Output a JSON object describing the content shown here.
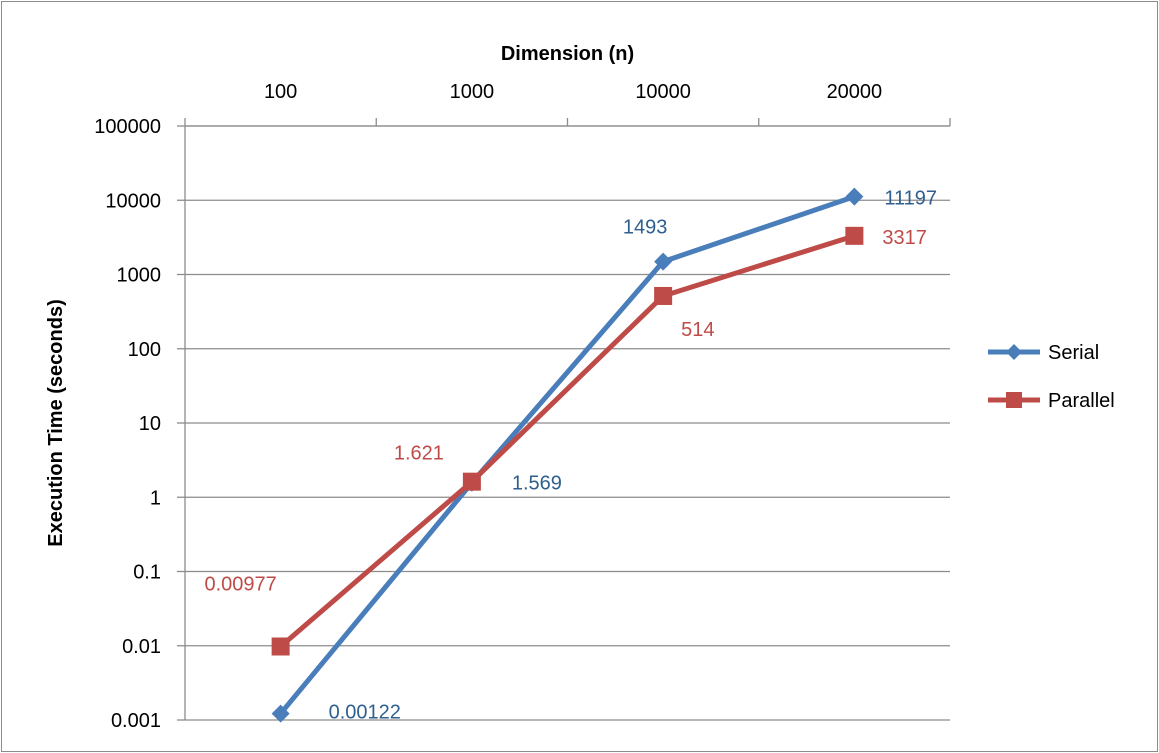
{
  "chart_data": {
    "type": "line",
    "xlabel": "Dimension (n)",
    "ylabel": "Execution Time (seconds)",
    "categories": [
      "100",
      "1000",
      "10000",
      "20000"
    ],
    "y_scale": "log",
    "ylim": [
      0.001,
      100000
    ],
    "y_ticks": [
      "100000",
      "10000",
      "1000",
      "100",
      "10",
      "1",
      "0.1",
      "0.01",
      "0.001"
    ],
    "grid": true,
    "legend_position": "right",
    "series": [
      {
        "name": "Serial",
        "values": [
          0.00122,
          1.569,
          1493,
          11197
        ],
        "labels": [
          "0.00122",
          "1.569",
          "1493",
          "11197"
        ],
        "color": "#4a7ebb",
        "marker": "diamond"
      },
      {
        "name": "Parallel",
        "values": [
          0.00977,
          1.621,
          514,
          3317
        ],
        "labels": [
          "0.00977",
          "1.621",
          "514",
          "3317"
        ],
        "color": "#be4b48",
        "marker": "square"
      }
    ]
  }
}
